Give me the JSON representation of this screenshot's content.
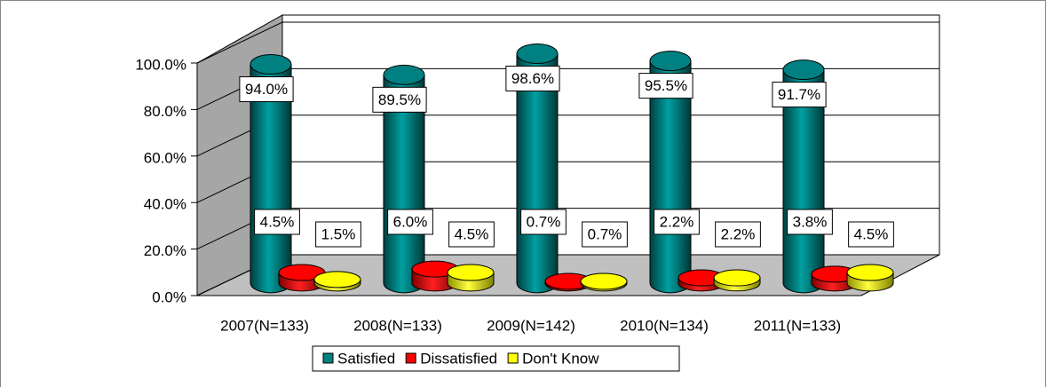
{
  "chart_data": {
    "type": "bar3d",
    "categories": [
      "2007(N=133)",
      "2008(N=133)",
      "2009(N=142)",
      "2010(N=134)",
      "2011(N=133)"
    ],
    "series": [
      {
        "name": "Satisfied",
        "color": "#008080",
        "values": [
          94.0,
          89.5,
          98.6,
          95.5,
          91.7
        ],
        "value_labels": [
          "94.0%",
          "89.5%",
          "98.6%",
          "95.5%",
          "91.7%"
        ]
      },
      {
        "name": "Dissatisfied",
        "color": "#ff0000",
        "values": [
          4.5,
          6.0,
          0.7,
          2.2,
          3.8
        ],
        "value_labels": [
          "4.5%",
          "6.0%",
          "0.7%",
          "2.2%",
          "3.8%"
        ]
      },
      {
        "name": "Don't Know",
        "color": "#ffff00",
        "values": [
          1.5,
          4.5,
          0.7,
          2.2,
          4.5
        ],
        "value_labels": [
          "1.5%",
          "4.5%",
          "0.7%",
          "2.2%",
          "4.5%"
        ]
      }
    ],
    "ylim": [
      0,
      100
    ],
    "yticks": [
      {
        "value": 0,
        "label": "0.0%"
      },
      {
        "value": 20,
        "label": "20.0%"
      },
      {
        "value": 40,
        "label": "40.0%"
      },
      {
        "value": 60,
        "label": "60.0%"
      },
      {
        "value": 80,
        "label": "80.0%"
      },
      {
        "value": 100,
        "label": "100.0%"
      }
    ],
    "grid": true,
    "legend": "bottom"
  }
}
